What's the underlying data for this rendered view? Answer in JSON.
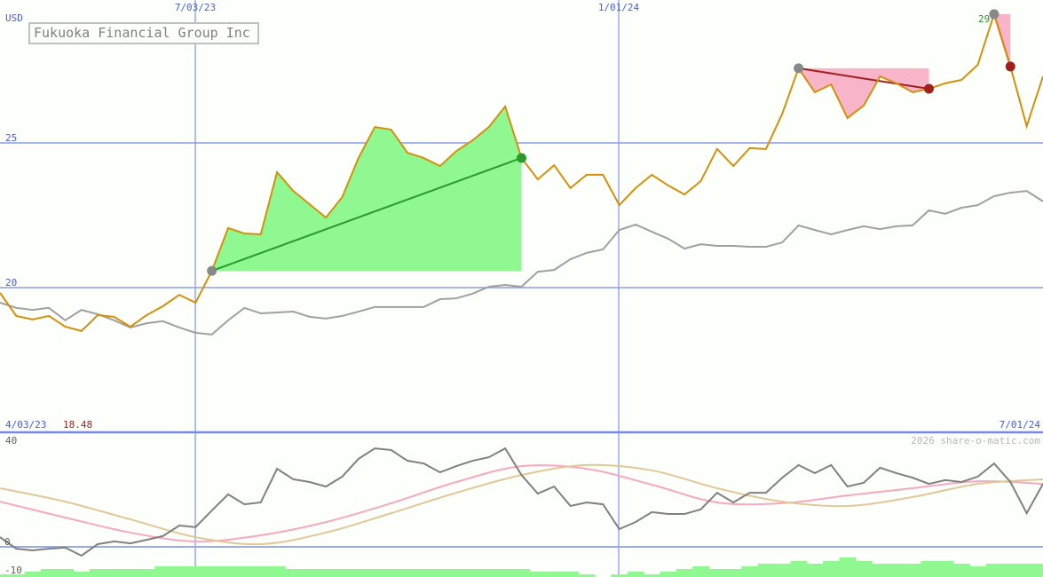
{
  "chart_data": [
    {
      "type": "line",
      "title": "Fukuoka Financial Group Inc",
      "ylabel": "USD",
      "ylim": [
        16.0,
        30.0
      ],
      "y_ticks": [
        "25",
        "20"
      ],
      "x_ticks": [
        "7/03/23",
        "1/01/24"
      ],
      "start_label": "4/03/23",
      "end_label": "7/01/24",
      "min_label": "18.48",
      "peak_label": "29",
      "grid": true,
      "series": [
        {
          "role": "price",
          "color": "#d4900c",
          "values": [
            19.82,
            19.02,
            18.9,
            19.02,
            18.65,
            18.5,
            19.05,
            18.99,
            18.65,
            19.05,
            19.36,
            19.75,
            19.48,
            20.58,
            22.06,
            21.87,
            21.84,
            23.99,
            23.34,
            22.88,
            22.42,
            23.13,
            24.48,
            25.55,
            25.46,
            24.66,
            24.48,
            24.2,
            24.72,
            25.09,
            25.55,
            26.26,
            24.48,
            23.74,
            24.23,
            23.44,
            23.9,
            23.9,
            22.85,
            23.44,
            23.9,
            23.53,
            23.22,
            23.68,
            24.79,
            24.2,
            24.82,
            24.79,
            26.01,
            27.58,
            26.75,
            27.02,
            25.86,
            26.29,
            27.3,
            27.06,
            26.75,
            26.87,
            27.06,
            27.18,
            27.7,
            29.45,
            27.64,
            25.58,
            27.3
          ]
        },
        {
          "role": "comparison",
          "color": "#a0a0a0",
          "values": [
            19.48,
            19.3,
            19.23,
            19.3,
            18.87,
            19.23,
            19.08,
            18.87,
            18.62,
            18.77,
            18.84,
            18.62,
            18.44,
            18.38,
            18.87,
            19.3,
            19.11,
            19.14,
            19.17,
            18.99,
            18.93,
            19.02,
            19.17,
            19.33,
            19.33,
            19.33,
            19.33,
            19.6,
            19.63,
            19.79,
            20.03,
            20.09,
            20.03,
            20.55,
            20.61,
            20.98,
            21.2,
            21.32,
            21.99,
            22.18,
            21.93,
            21.69,
            21.35,
            21.5,
            21.44,
            21.44,
            21.41,
            21.41,
            21.56,
            22.15,
            21.99,
            21.84,
            21.99,
            22.12,
            22.02,
            22.12,
            22.15,
            22.67,
            22.55,
            22.76,
            22.85,
            23.16,
            23.28,
            23.34,
            22.98
          ]
        }
      ],
      "annotations": [
        {
          "type": "rise",
          "from_index": 13,
          "to_index": 32,
          "color": "#90f890",
          "line_color": "#2a9a2a",
          "end_marker": "#2a9a2a"
        },
        {
          "type": "fall",
          "from_index": 49,
          "to_index": 57,
          "color": "#f8b4c8",
          "line_color": "#a02020",
          "end_marker": "#a02020"
        },
        {
          "type": "fall",
          "from_index": 61,
          "to_index": 62,
          "color": "#f8b4c8",
          "line_color": "#a02020",
          "end_marker": "#a02020"
        }
      ]
    },
    {
      "type": "line",
      "ylim": [
        -10,
        40
      ],
      "y_ticks": [
        "40",
        "0",
        "-10"
      ],
      "watermark": "2026 share-o-matic.com",
      "series": [
        {
          "role": "oscillator",
          "color": "#808080",
          "values": [
            3.6,
            -0.7,
            -1.3,
            -0.7,
            -0.3,
            -3.3,
            1.0,
            2.0,
            1.3,
            2.6,
            4.0,
            7.9,
            7.3,
            13.5,
            19.5,
            15.8,
            16.5,
            29.0,
            25.1,
            24.1,
            22.4,
            26.1,
            32.7,
            36.6,
            36.0,
            32.0,
            31.0,
            27.7,
            30.0,
            32.0,
            33.3,
            36.6,
            26.7,
            19.8,
            22.4,
            15.2,
            16.5,
            15.8,
            6.6,
            9.2,
            12.9,
            12.2,
            12.2,
            13.9,
            20.1,
            16.5,
            20.1,
            20.1,
            25.7,
            30.4,
            27.4,
            30.4,
            22.4,
            23.8,
            29.4,
            27.4,
            25.7,
            23.4,
            24.8,
            24.1,
            26.1,
            31.0,
            24.1,
            12.5,
            23.4
          ]
        },
        {
          "role": "signal-fast",
          "color": "#f8a8c0",
          "values": [
            16.8,
            10.9,
            5.3,
            2.0,
            4.3,
            9.2,
            16.2,
            24.1,
            30.0,
            29.0,
            23.1,
            16.5,
            16.2,
            19.1,
            21.8,
            24.4,
            23.4
          ]
        },
        {
          "role": "signal-slow",
          "color": "#e0c898",
          "values": [
            21.8,
            16.8,
            10.2,
            3.6,
            1.0,
            5.3,
            12.5,
            20.1,
            26.7,
            30.4,
            28.4,
            21.8,
            16.8,
            15.2,
            18.5,
            23.4,
            25.1
          ]
        }
      ],
      "volume": {
        "color": "#90f890",
        "values": [
          3,
          3,
          6,
          9,
          9,
          6,
          9,
          9,
          9,
          9,
          12,
          12,
          12,
          12,
          12,
          12,
          12,
          12,
          9,
          9,
          9,
          9,
          9,
          9,
          9,
          9,
          9,
          9,
          9,
          9,
          9,
          9,
          9,
          6,
          6,
          6,
          3,
          0,
          3,
          6,
          3,
          6,
          9,
          12,
          9,
          9,
          12,
          15,
          15,
          18,
          15,
          18,
          22,
          18,
          15,
          15,
          15,
          18,
          18,
          15,
          12,
          15,
          15,
          15,
          15
        ]
      }
    }
  ]
}
